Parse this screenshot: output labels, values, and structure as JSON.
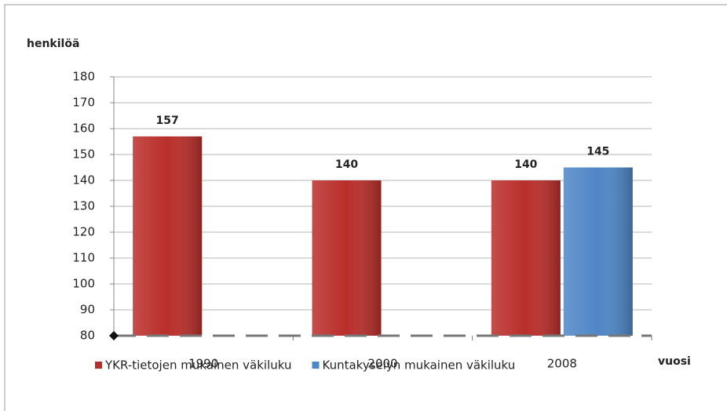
{
  "chart_data": {
    "type": "bar",
    "y_label": "henkilöä",
    "x_label": "vuosi",
    "categories": [
      "1990",
      "2000",
      "2008"
    ],
    "series": [
      {
        "name": "YKR-tietojen mukainen väkiluku",
        "color": "#b92e2b",
        "values": [
          157,
          140,
          140
        ]
      },
      {
        "name": "Kuntakyselyn mukainen väkiluku",
        "color": "#4f86c6",
        "values": [
          null,
          null,
          145
        ]
      }
    ],
    "ylim": [
      80,
      180
    ],
    "yticks": [
      80,
      90,
      100,
      110,
      120,
      130,
      140,
      150,
      160,
      170,
      180
    ],
    "grid": true
  }
}
